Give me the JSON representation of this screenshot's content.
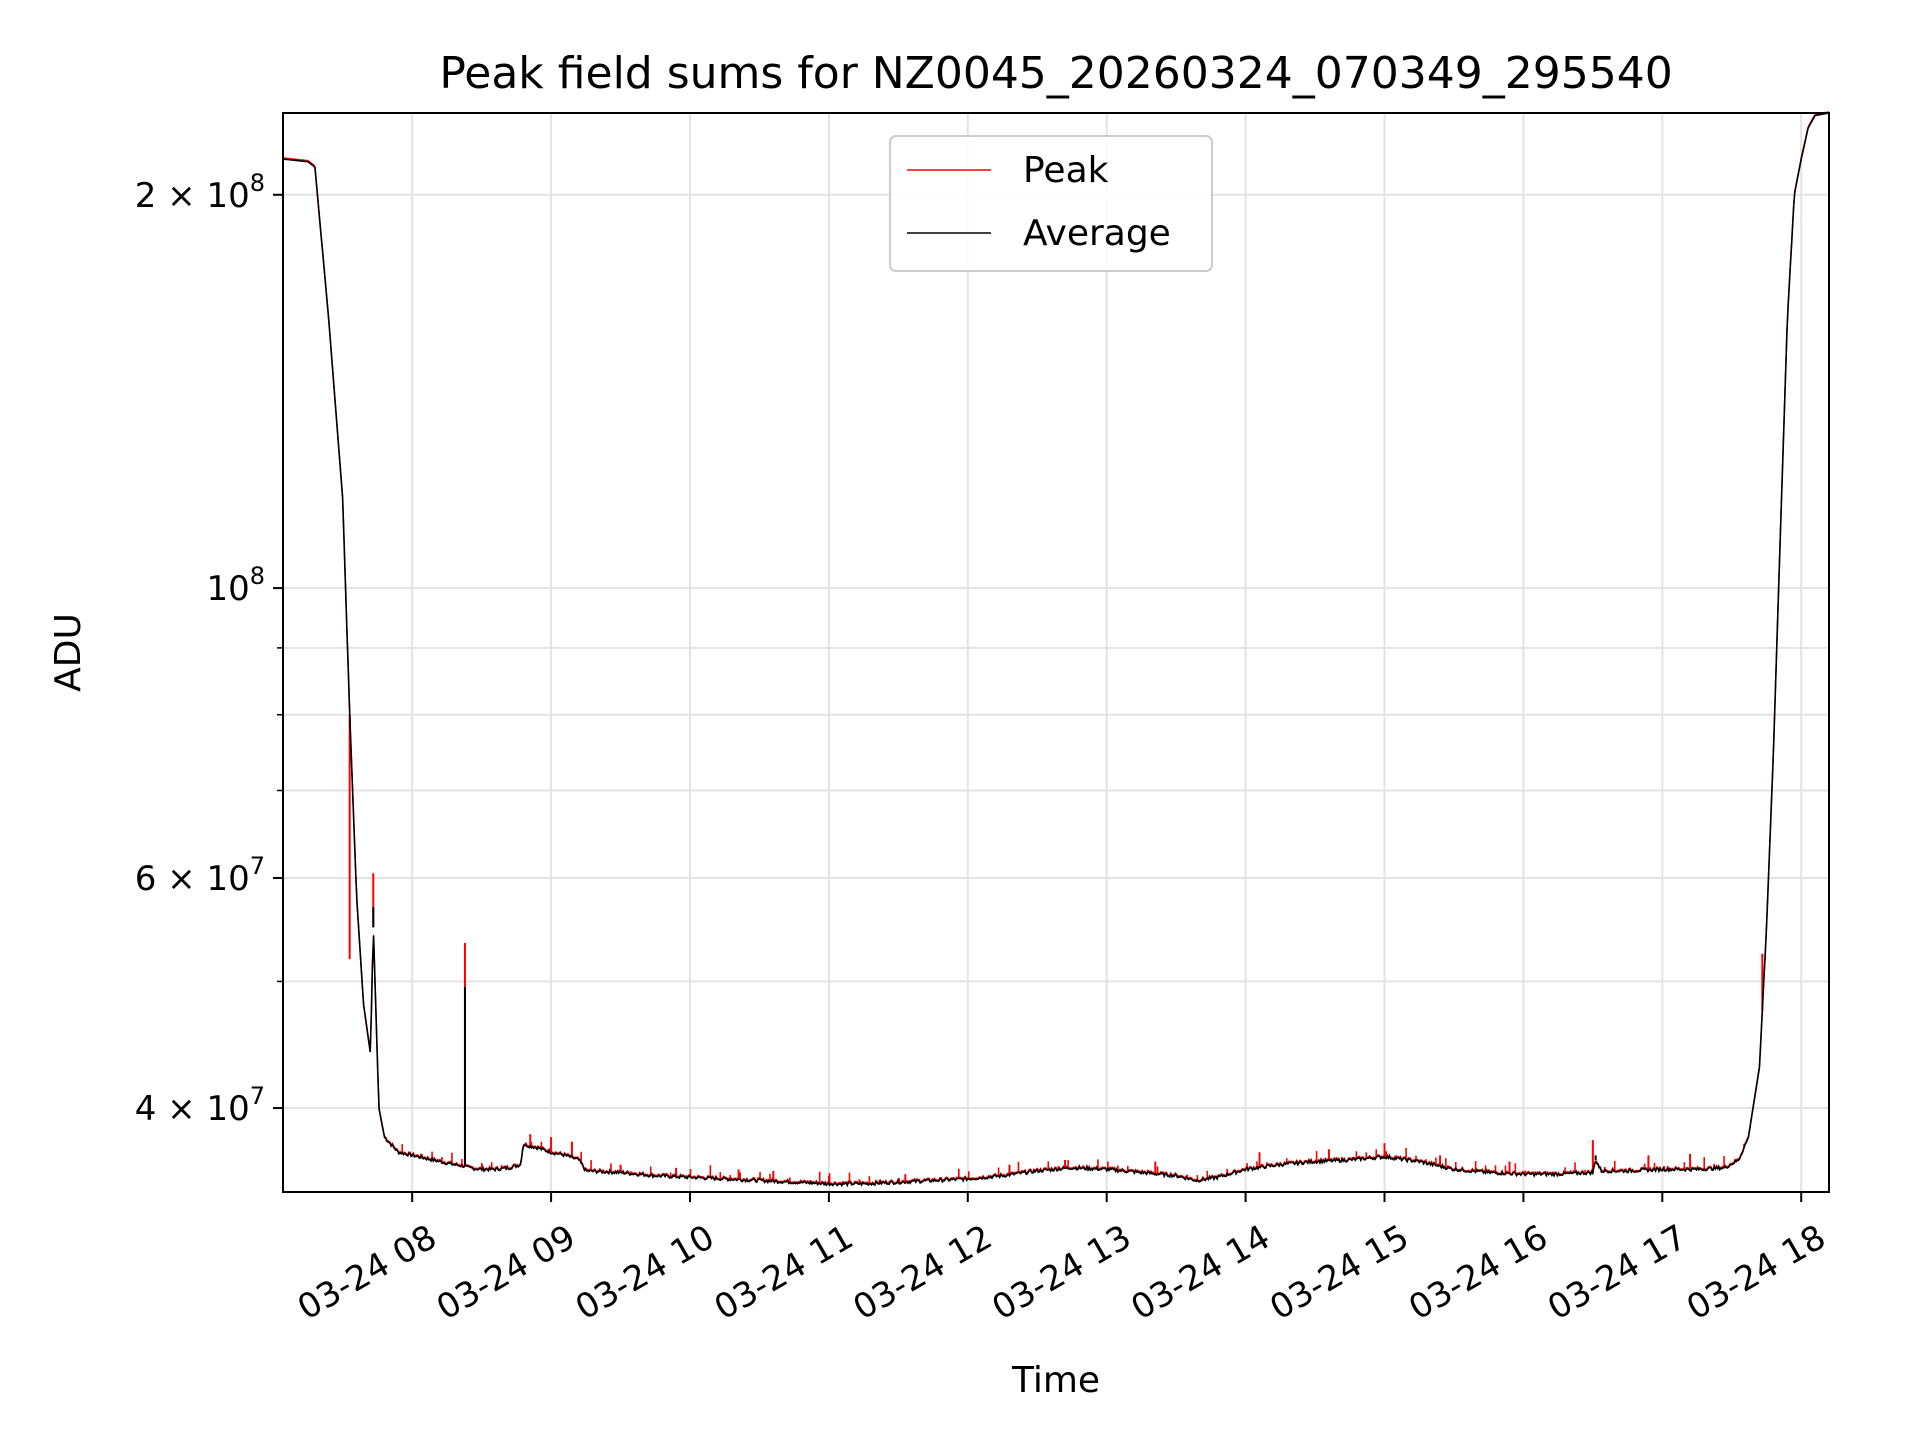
{
  "chart_data": {
    "type": "line",
    "title": "Peak field sums for NZ0045_20260324_070349_295540",
    "xlabel": "Time",
    "ylabel": "ADU",
    "yscale": "log",
    "grid": true,
    "legend_position": "upper center",
    "xlim_hours": [
      7.07,
      18.2
    ],
    "ylim": [
      34500000,
      231000000
    ],
    "x_ticks": [
      {
        "hour": 8,
        "label": "03-24 08"
      },
      {
        "hour": 9,
        "label": "03-24 09"
      },
      {
        "hour": 10,
        "label": "03-24 10"
      },
      {
        "hour": 11,
        "label": "03-24 11"
      },
      {
        "hour": 12,
        "label": "03-24 12"
      },
      {
        "hour": 13,
        "label": "03-24 13"
      },
      {
        "hour": 14,
        "label": "03-24 14"
      },
      {
        "hour": 15,
        "label": "03-24 15"
      },
      {
        "hour": 16,
        "label": "03-24 16"
      },
      {
        "hour": 17,
        "label": "03-24 17"
      },
      {
        "hour": 18,
        "label": "03-24 18"
      }
    ],
    "y_major_ticks": [
      {
        "value": 40000000,
        "mantissa": "4 × 10",
        "exp": "7"
      },
      {
        "value": 60000000,
        "mantissa": "6 × 10",
        "exp": "7"
      },
      {
        "value": 100000000,
        "mantissa": "10",
        "exp": "8"
      },
      {
        "value": 200000000,
        "mantissa": "2 × 10",
        "exp": "8"
      }
    ],
    "y_minor_ticks": [
      50000000,
      70000000,
      80000000,
      90000000
    ],
    "series": [
      {
        "name": "Average",
        "color": "#000000",
        "x": [
          7.07,
          7.25,
          7.3,
          7.4,
          7.5,
          7.55,
          7.6,
          7.65,
          7.7,
          7.72,
          7.76,
          7.8,
          7.9,
          8.0,
          8.1,
          8.2,
          8.3,
          8.38,
          8.4,
          8.5,
          8.6,
          8.7,
          8.78,
          8.8,
          8.9,
          9.0,
          9.1,
          9.2,
          9.25,
          9.5,
          9.75,
          10.0,
          10.25,
          10.5,
          10.75,
          11.0,
          11.25,
          11.5,
          11.75,
          12.0,
          12.25,
          12.5,
          12.75,
          13.0,
          13.25,
          13.5,
          13.65,
          13.8,
          14.0,
          14.25,
          14.5,
          14.75,
          15.0,
          15.25,
          15.5,
          15.75,
          16.0,
          16.25,
          16.5,
          16.52,
          16.56,
          16.75,
          17.0,
          17.25,
          17.45,
          17.55,
          17.62,
          17.7,
          17.75,
          17.8,
          17.85,
          17.9,
          17.95,
          18.0,
          18.05,
          18.1,
          18.2
        ],
        "values": [
          213000000,
          212000000,
          210000000,
          160000000,
          117000000,
          80000000,
          58000000,
          48000000,
          44000000,
          55000000,
          40000000,
          38000000,
          37000000,
          36800000,
          36600000,
          36400000,
          36200000,
          36100000,
          36000000,
          35900000,
          35900000,
          36000000,
          36200000,
          37500000,
          37300000,
          37000000,
          36800000,
          36500000,
          35800000,
          35700000,
          35500000,
          35400000,
          35300000,
          35200000,
          35100000,
          35000000,
          35000000,
          35100000,
          35200000,
          35300000,
          35500000,
          35800000,
          36000000,
          35900000,
          35700000,
          35500000,
          35200000,
          35400000,
          35900000,
          36200000,
          36400000,
          36500000,
          36700000,
          36400000,
          35900000,
          35700000,
          35600000,
          35600000,
          35700000,
          36500000,
          35800000,
          35800000,
          35900000,
          35900000,
          36000000,
          36500000,
          38000000,
          43000000,
          55000000,
          75000000,
          110000000,
          160000000,
          200000000,
          213000000,
          225000000,
          230000000,
          231000000
        ]
      },
      {
        "name": "Peak",
        "color": "#ff0000",
        "spikes": [
          {
            "hour": 7.55,
            "value": 52000000
          },
          {
            "hour": 7.72,
            "value": 60500000
          },
          {
            "hour": 8.38,
            "value": 53500000
          },
          {
            "hour": 8.85,
            "value": 38200000
          },
          {
            "hour": 9.0,
            "value": 38000000
          },
          {
            "hour": 9.15,
            "value": 37700000
          },
          {
            "hour": 9.5,
            "value": 36200000
          },
          {
            "hour": 9.9,
            "value": 36000000
          },
          {
            "hour": 10.35,
            "value": 35900000
          },
          {
            "hour": 10.6,
            "value": 35800000
          },
          {
            "hour": 11.0,
            "value": 35500000
          },
          {
            "hour": 11.55,
            "value": 35600000
          },
          {
            "hour": 12.3,
            "value": 36200000
          },
          {
            "hour": 12.7,
            "value": 36500000
          },
          {
            "hour": 13.35,
            "value": 36400000
          },
          {
            "hour": 14.1,
            "value": 37000000
          },
          {
            "hour": 14.6,
            "value": 37200000
          },
          {
            "hour": 15.0,
            "value": 37600000
          },
          {
            "hour": 15.4,
            "value": 36800000
          },
          {
            "hour": 15.9,
            "value": 36400000
          },
          {
            "hour": 16.5,
            "value": 37800000
          },
          {
            "hour": 16.9,
            "value": 36800000
          },
          {
            "hour": 17.2,
            "value": 36900000
          },
          {
            "hour": 17.72,
            "value": 52500000
          }
        ]
      }
    ]
  }
}
